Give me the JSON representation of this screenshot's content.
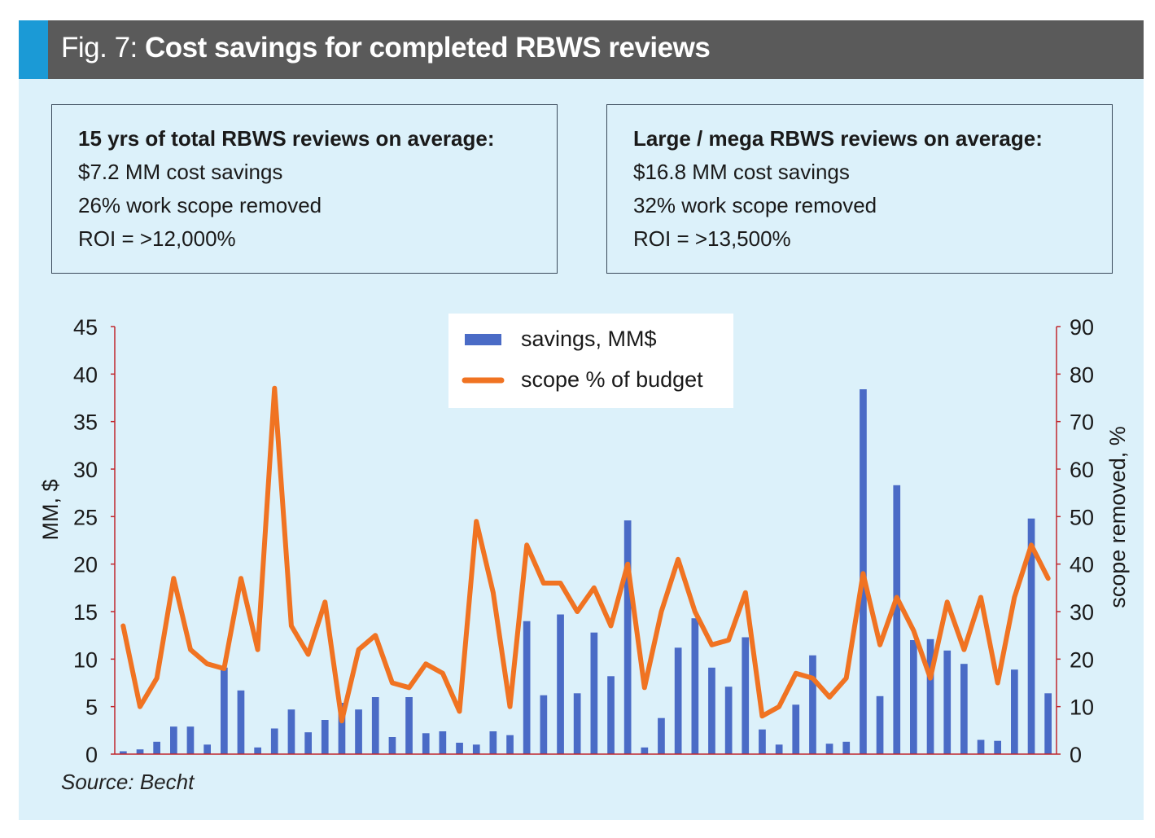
{
  "header": {
    "fig_label": "Fig. 7:",
    "title": "Cost savings for completed RBWS reviews"
  },
  "summary_boxes": [
    {
      "title": "15 yrs of total RBWS reviews on average:",
      "lines": [
        "$7.2 MM cost savings",
        "26% work scope removed",
        "ROI = >12,000%"
      ]
    },
    {
      "title": "Large / mega RBWS reviews on average:",
      "lines": [
        "$16.8 MM cost savings",
        "32% work scope removed",
        "ROI = >13,500%"
      ]
    }
  ],
  "source": "Source: Becht",
  "colors": {
    "bar": "#4a6bc6",
    "line": "#f07322",
    "axis": "#c0272d",
    "header_bg": "#5a5a5a",
    "header_accent": "#1b9ad6",
    "panel_bg": "#dcf1fa"
  },
  "chart_data": {
    "type": "bar",
    "title": "",
    "ylabel": "MM, $",
    "y2label": "scope removed, %",
    "ylim": [
      0,
      45
    ],
    "y2lim": [
      0,
      90
    ],
    "yticks": [
      "0",
      "5",
      "10",
      "15",
      "20",
      "25",
      "30",
      "35",
      "40",
      "45"
    ],
    "y2ticks": [
      "0",
      "10",
      "20",
      "30",
      "40",
      "50",
      "60",
      "70",
      "80",
      "90"
    ],
    "legend_position": "top-center",
    "series": [
      {
        "name": "savings, MM$",
        "type": "bar",
        "axis": "left",
        "values": [
          0.3,
          0.5,
          1.3,
          2.9,
          2.9,
          1.0,
          9.1,
          6.7,
          0.7,
          2.7,
          4.7,
          2.3,
          3.6,
          5.4,
          4.7,
          6.0,
          1.8,
          6.0,
          2.2,
          2.4,
          1.2,
          1.0,
          2.4,
          2.0,
          14.0,
          6.2,
          14.7,
          6.4,
          12.8,
          8.2,
          24.6,
          0.7,
          3.8,
          11.2,
          14.3,
          9.1,
          7.1,
          12.3,
          2.6,
          1.0,
          5.2,
          10.4,
          1.1,
          1.3,
          38.4,
          6.1,
          28.3,
          12.0,
          12.1,
          10.9,
          9.5,
          1.5,
          1.4,
          8.9,
          24.8,
          6.4
        ]
      },
      {
        "name": "scope % of budget",
        "type": "line",
        "axis": "right",
        "values": [
          27,
          10,
          16,
          37,
          22,
          19,
          18,
          37,
          22,
          77,
          27,
          21,
          32,
          7,
          22,
          25,
          15,
          14,
          19,
          17,
          9,
          49,
          34,
          10,
          44,
          36,
          36,
          30,
          35,
          27,
          40,
          14,
          30,
          41,
          30,
          23,
          24,
          34,
          8,
          10,
          17,
          16,
          12,
          16,
          38,
          23,
          33,
          26,
          16,
          32,
          22,
          33,
          15,
          33,
          44,
          37
        ]
      }
    ]
  }
}
